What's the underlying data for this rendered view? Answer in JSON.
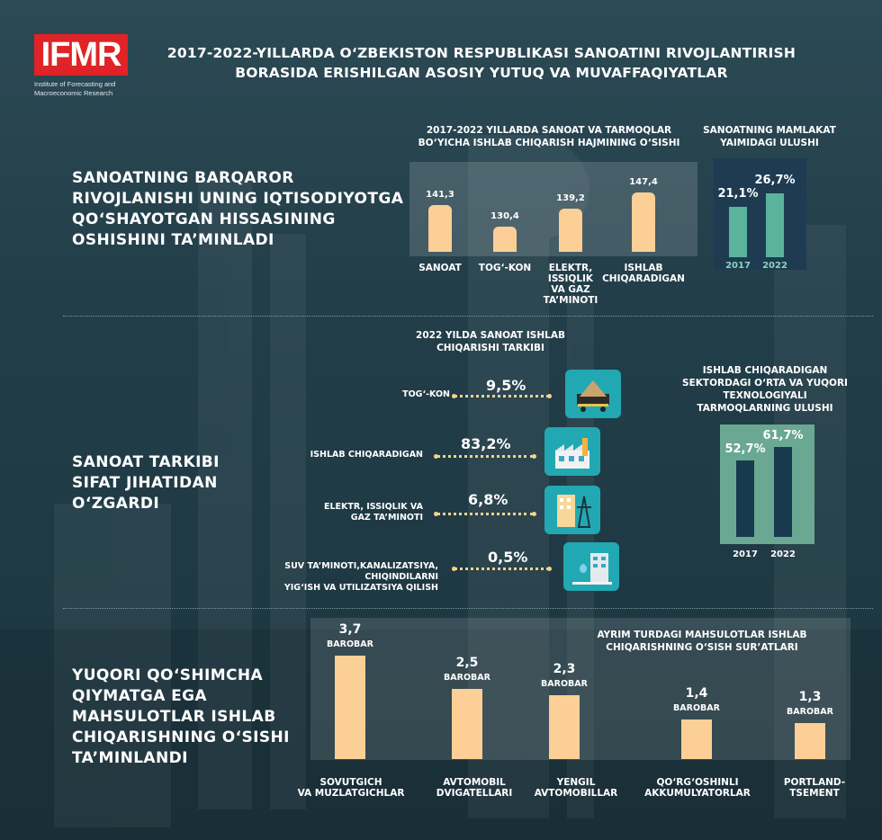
{
  "header": {
    "logo_text": "IFMR",
    "logo_sub": "Institute of Forecasting and Macroeconomic Research",
    "title_line1": "2017-2022-YILLARDA O‘ZBEKISTON RESPUBLIKASI SANOATINI RIVOJLANTIRISH",
    "title_line2": "BORASIDA ERISHILGAN ASOSIY YUTUQ VA MUVAFFAQIYATLAR"
  },
  "sections": {
    "s1": [
      "SANOATNING BARQAROR",
      "RIVOJLANISHI UNING IQTISODIYOTGA",
      "QO‘SHAYOTGAN HISSASINING",
      "OSHISHINI TA’MINLADI"
    ],
    "s2": [
      "SANOAT TARKIBI",
      "SIFAT JIHATIDAN",
      "O‘ZGARDI"
    ],
    "s3": [
      "YUQORI QO‘SHIMCHA",
      "QIYMATGA EGA",
      "MAHSULOTLAR ISHLAB",
      "CHIQARISHNING O‘SISHI",
      "TA’MINLANDI"
    ]
  },
  "colors": {
    "bar": "#fbcf95",
    "panel_dark": "#1e3b52",
    "bar_green": "#5ab39b",
    "panel_green": "#6aa894",
    "bar_navy": "#183a4e",
    "icon_teal": "#21a8b3",
    "dots": "#f3d38b"
  },
  "chart_data": [
    {
      "type": "bar",
      "title_lines": [
        "2017-2022 YILLARDA SANOAT VA TARMOQLAR",
        "BO‘YICHA ISHLAB CHIQARISH HAJMINING O‘SISHI"
      ],
      "categories": [
        [
          "SANOAT"
        ],
        [
          "TOG‘-KON"
        ],
        [
          "ELEKTR,",
          "ISSIQLIK",
          "VA GAZ",
          "TA’MINOTI"
        ],
        [
          "ISHLAB",
          "CHIQARADIGAN"
        ]
      ],
      "values": [
        141.3,
        130.4,
        139.2,
        147.4
      ],
      "labels": [
        "141,3",
        "130,4",
        "139,2",
        "147,4"
      ]
    },
    {
      "type": "bar",
      "title_lines": [
        "SANOATNING MAMLAKAT",
        "YAIMIDAGI ULUSHI"
      ],
      "categories": [
        "2017",
        "2022"
      ],
      "values": [
        21.1,
        26.7
      ],
      "labels": [
        "21,1%",
        "26,7%"
      ]
    },
    {
      "type": "table",
      "title_lines": [
        "2022 YILDA SANOAT ISHLAB",
        "CHIQARISHI TARKIBI"
      ],
      "rows": [
        {
          "label": [
            "TOG‘-KON"
          ],
          "value": 9.5,
          "label_value": "9,5%",
          "icon": "mine-cart-icon"
        },
        {
          "label": [
            "ISHLAB CHIQARADIGAN"
          ],
          "value": 83.2,
          "label_value": "83,2%",
          "icon": "factory-icon"
        },
        {
          "label": [
            "ELEKTR, ISSIQLIK VA",
            "GAZ TA’MINOTI"
          ],
          "value": 6.8,
          "label_value": "6,8%",
          "icon": "power-plant-icon"
        },
        {
          "label": [
            "SUV TA’MINOTI,KANALIZATSIYA,",
            "CHIQINDILARNI",
            "YIG‘ISH VA UTILIZATSIYA QILISH"
          ],
          "value": 0.5,
          "label_value": "0,5%",
          "icon": "water-tower-icon"
        }
      ]
    },
    {
      "type": "bar",
      "title_lines": [
        "ISHLAB CHIQARADIGAN",
        "SEKTORDAGI O‘RTA VA YUQORI",
        "TEXNOLOGIYALI",
        "TARMOQLARNING ULUSHI"
      ],
      "categories": [
        "2017",
        "2022"
      ],
      "values": [
        52.7,
        61.7
      ],
      "labels": [
        "52,7%",
        "61,7%"
      ]
    },
    {
      "type": "bar",
      "title_lines": [
        "AYRIM TURDAGI MAHSULOTLAR ISHLAB",
        "CHIQARISHNING O‘SISH SUR’ATLARI"
      ],
      "unit": "BAROBAR",
      "categories": [
        [
          "SOVUTGICH",
          "VA MUZLATGICHLAR"
        ],
        [
          "AVTOMOBIL",
          "DVIGATELLARI"
        ],
        [
          "YENGIL",
          "AVTOMOBILLAR"
        ],
        [
          "QO‘RG‘OSHINLI",
          "AKKUMULYATORLAR"
        ],
        [
          "PORTLAND-",
          "TSEMENT"
        ]
      ],
      "values": [
        3.7,
        2.5,
        2.3,
        1.4,
        1.3
      ],
      "labels": [
        "3,7",
        "2,5",
        "2,3",
        "1,4",
        "1,3"
      ]
    }
  ]
}
